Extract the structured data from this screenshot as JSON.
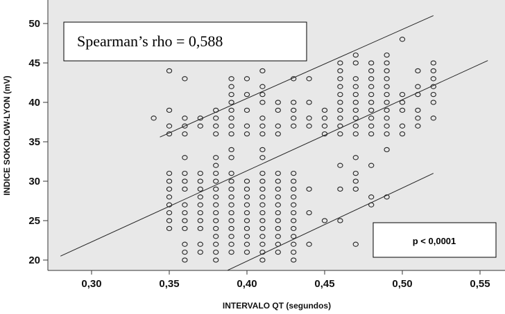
{
  "chart_data": {
    "type": "scatter",
    "xlabel": "INTERVALO QT (segundos)",
    "ylabel": "INDICE SOKOLOW-LYON (mV)",
    "xlim": [
      0.28,
      0.555
    ],
    "ylim": [
      18,
      51
    ],
    "x_ticks": [
      "0,30",
      "0,35",
      "0,40",
      "0,45",
      "0,50",
      "0,55"
    ],
    "x_tick_values": [
      0.3,
      0.35,
      0.4,
      0.45,
      0.5,
      0.55
    ],
    "y_ticks": [
      "20",
      "25",
      "30",
      "35",
      "40",
      "45",
      "50"
    ],
    "y_tick_values": [
      20,
      25,
      30,
      35,
      40,
      45,
      50
    ],
    "grid": false,
    "annotations": {
      "rho": "Spearman’s rho = 0,588",
      "p": "p < 0,0001"
    },
    "lines": [
      {
        "x": [
          0.344,
          0.52
        ],
        "y": [
          35.6,
          51
        ]
      },
      {
        "x": [
          0.28,
          0.555
        ],
        "y": [
          20.5,
          45.3
        ]
      },
      {
        "x": [
          0.38,
          0.52
        ],
        "y": [
          18,
          31
        ]
      }
    ],
    "columns": [
      {
        "x": 0.34,
        "y": [
          38
        ]
      },
      {
        "x": 0.35,
        "y": [
          24,
          25,
          26,
          27,
          28,
          29,
          30,
          31,
          36,
          37,
          39,
          44
        ]
      },
      {
        "x": 0.36,
        "y": [
          20,
          21,
          22,
          24,
          25,
          26,
          27,
          29,
          30,
          31,
          33,
          36,
          37,
          38,
          43
        ]
      },
      {
        "x": 0.37,
        "y": [
          21,
          22,
          24,
          25,
          26,
          27,
          28,
          29,
          30,
          31,
          37,
          38
        ]
      },
      {
        "x": 0.38,
        "y": [
          20,
          21,
          22,
          23,
          24,
          25,
          26,
          27,
          28,
          29,
          30,
          31,
          32,
          33,
          36,
          37,
          38,
          39
        ]
      },
      {
        "x": 0.39,
        "y": [
          21,
          22,
          23,
          24,
          25,
          26,
          27,
          28,
          29,
          30,
          31,
          33,
          34,
          36,
          37,
          38,
          39,
          40,
          41,
          42,
          43
        ]
      },
      {
        "x": 0.4,
        "y": [
          21,
          22,
          23,
          24,
          25,
          26,
          27,
          28,
          29,
          30,
          36,
          37,
          39,
          41,
          43
        ]
      },
      {
        "x": 0.41,
        "y": [
          20,
          21,
          22,
          23,
          24,
          25,
          26,
          27,
          28,
          29,
          30,
          31,
          33,
          34,
          36,
          37,
          38,
          40,
          41,
          42,
          44
        ]
      },
      {
        "x": 0.42,
        "y": [
          21,
          22,
          23,
          24,
          25,
          26,
          27,
          28,
          29,
          30,
          31,
          36,
          37,
          39,
          40
        ]
      },
      {
        "x": 0.43,
        "y": [
          20,
          21,
          22,
          23,
          24,
          25,
          26,
          27,
          28,
          29,
          30,
          31,
          37,
          38,
          39,
          40,
          43
        ]
      },
      {
        "x": 0.44,
        "y": [
          22,
          26,
          29,
          37,
          38,
          40,
          43
        ]
      },
      {
        "x": 0.45,
        "y": [
          25,
          36,
          37,
          38,
          39
        ]
      },
      {
        "x": 0.46,
        "y": [
          25,
          29,
          32,
          36,
          37,
          38,
          39,
          40,
          41,
          42,
          43,
          44,
          45
        ]
      },
      {
        "x": 0.47,
        "y": [
          22,
          29,
          30,
          31,
          33,
          36,
          37,
          38,
          39,
          40,
          41,
          42,
          43,
          45,
          46
        ]
      },
      {
        "x": 0.48,
        "y": [
          27,
          28,
          32,
          36,
          37,
          38,
          39,
          40,
          41,
          42,
          43,
          44,
          45
        ]
      },
      {
        "x": 0.49,
        "y": [
          28,
          34,
          36,
          37,
          38,
          39,
          40,
          41,
          42,
          43,
          44,
          45,
          46
        ]
      },
      {
        "x": 0.5,
        "y": [
          36,
          37,
          39,
          40,
          41,
          48
        ]
      },
      {
        "x": 0.51,
        "y": [
          37,
          38,
          39,
          41,
          42,
          44
        ]
      },
      {
        "x": 0.52,
        "y": [
          38,
          40,
          41,
          42,
          43,
          44,
          45
        ]
      }
    ]
  }
}
